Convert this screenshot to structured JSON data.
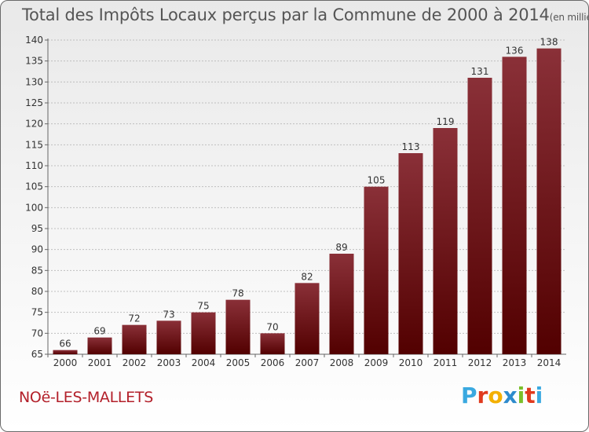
{
  "header": {
    "title": "Total des Impôts Locaux perçus par la Commune de 2000 à 2014",
    "unit_note": "(en milliers d'€)"
  },
  "footer": {
    "commune": "NOë-LES-MALLETS",
    "brand_letters": [
      "P",
      "r",
      "o",
      "x",
      "i",
      "t",
      "i"
    ],
    "brand_colors": [
      "#3aa9e0",
      "#e03a1e",
      "#f3b000",
      "#2e8bcc",
      "#7bbf2a",
      "#e03a1e",
      "#3aa9e0"
    ]
  },
  "colors": {
    "bar_top": "#8a3038",
    "bar_bottom": "#520000",
    "title_color": "#555555",
    "commune_color": "#b3202a"
  },
  "chart_data": {
    "type": "bar",
    "title": "Total des Impôts Locaux perçus par la Commune de 2000 à 2014",
    "xlabel": "",
    "ylabel": "en milliers d'€",
    "categories": [
      "2000",
      "2001",
      "2002",
      "2003",
      "2004",
      "2005",
      "2006",
      "2007",
      "2008",
      "2009",
      "2010",
      "2011",
      "2012",
      "2013",
      "2014"
    ],
    "values": [
      66,
      69,
      72,
      73,
      75,
      78,
      70,
      82,
      89,
      105,
      113,
      119,
      131,
      136,
      138
    ],
    "ylim": [
      65,
      140
    ],
    "yticks": [
      65,
      70,
      75,
      80,
      85,
      90,
      95,
      100,
      105,
      110,
      115,
      120,
      125,
      130,
      135,
      140
    ],
    "grid": true
  }
}
